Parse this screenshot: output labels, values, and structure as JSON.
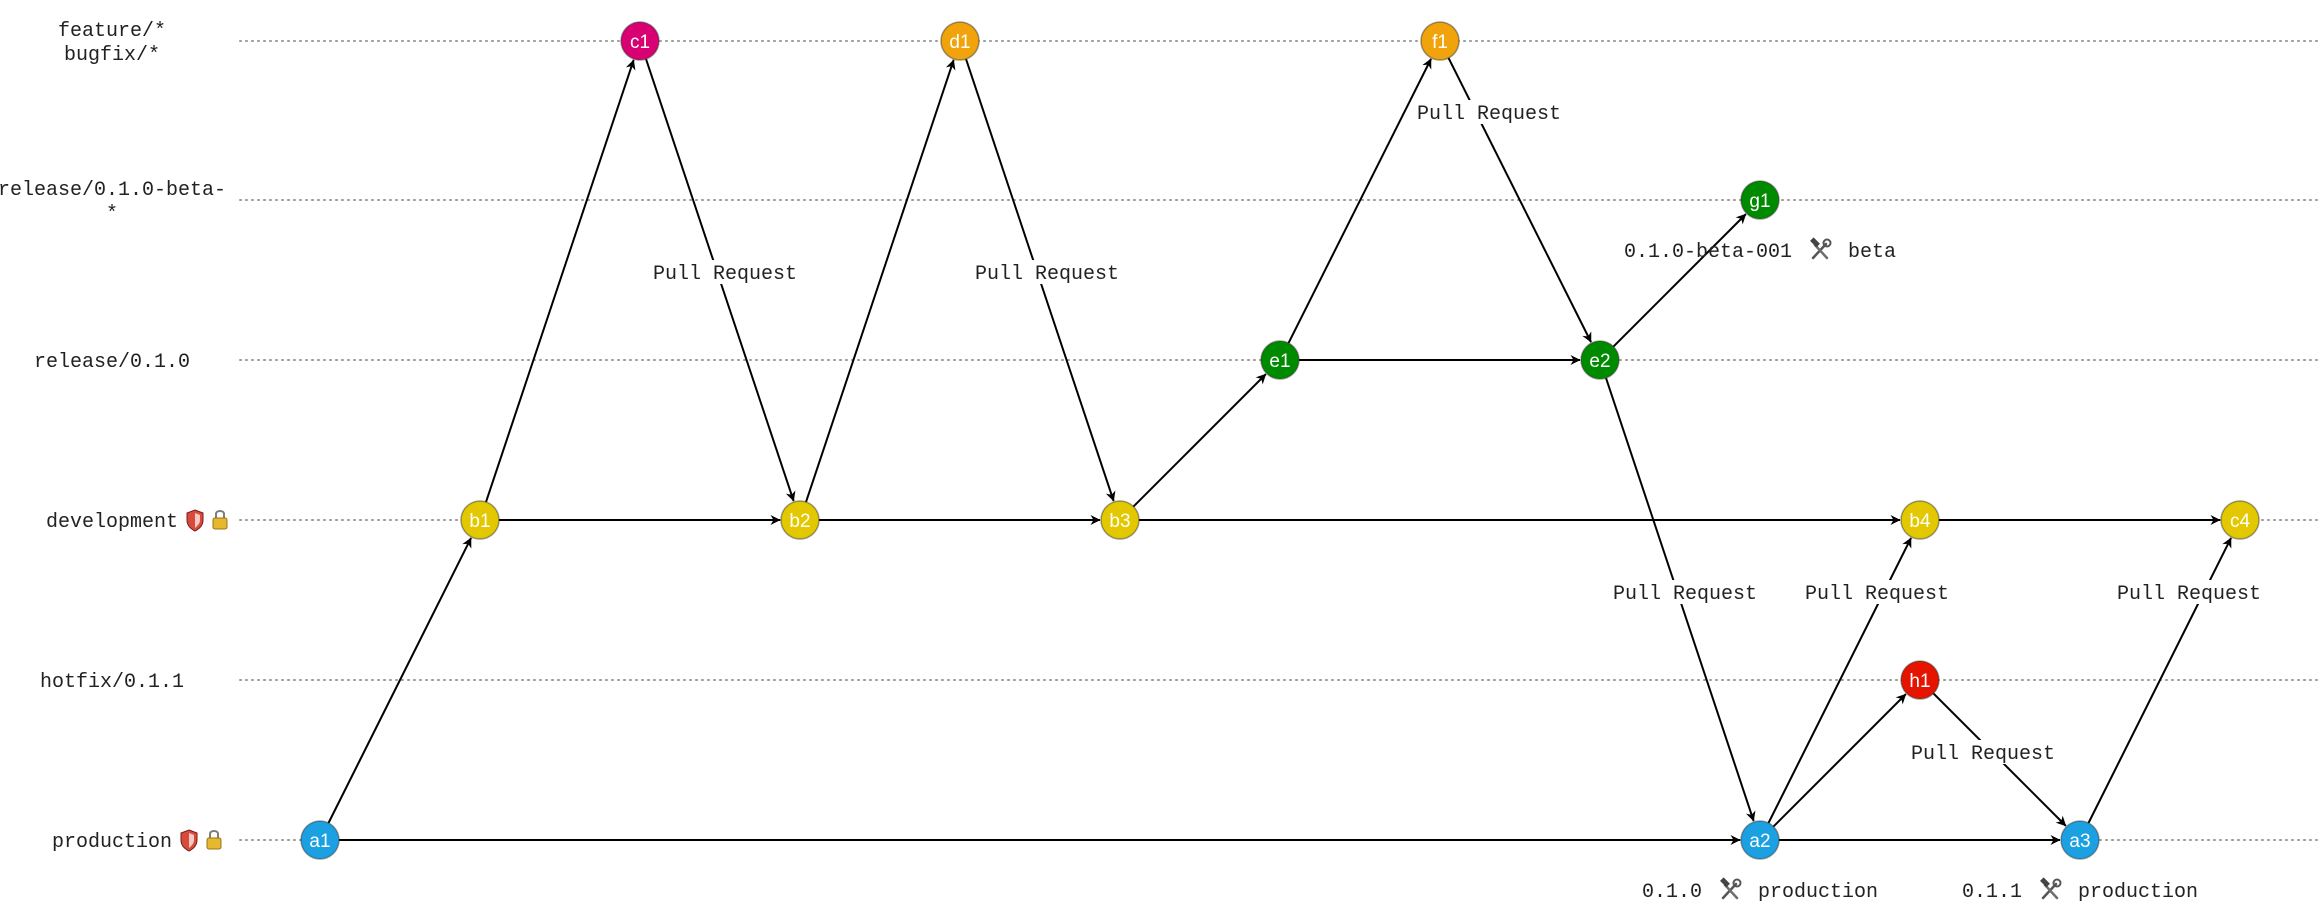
{
  "lanes": [
    {
      "id": "feature",
      "label_lines": [
        "feature/*",
        "bugfix/*"
      ],
      "icons": []
    },
    {
      "id": "release_beta",
      "label_lines": [
        "release/0.1.0-beta-",
        "*"
      ],
      "icons": []
    },
    {
      "id": "release",
      "label_lines": [
        "release/0.1.0"
      ],
      "icons": []
    },
    {
      "id": "development",
      "label_lines": [
        "development"
      ],
      "icons": [
        "shield-icon",
        "lock-icon"
      ]
    },
    {
      "id": "hotfix",
      "label_lines": [
        "hotfix/0.1.1"
      ],
      "icons": []
    },
    {
      "id": "production",
      "label_lines": [
        "production"
      ],
      "icons": [
        "shield-icon",
        "lock-icon"
      ]
    }
  ],
  "colors": {
    "production": "#1ba1e2",
    "development": "#e3c800",
    "feature_pink": "#d80073",
    "feature_orange": "#f0a30a",
    "release": "#008a00",
    "hotfix": "#e51400"
  },
  "nodes": [
    {
      "id": "a1",
      "label": "a1",
      "lane": "production",
      "color": "#1ba1e2"
    },
    {
      "id": "b1",
      "label": "b1",
      "lane": "development",
      "color": "#e3c800"
    },
    {
      "id": "c1",
      "label": "c1",
      "lane": "feature",
      "color": "#d80073"
    },
    {
      "id": "b2",
      "label": "b2",
      "lane": "development",
      "color": "#e3c800"
    },
    {
      "id": "d1",
      "label": "d1",
      "lane": "feature",
      "color": "#f0a30a"
    },
    {
      "id": "b3",
      "label": "b3",
      "lane": "development",
      "color": "#e3c800"
    },
    {
      "id": "e1",
      "label": "e1",
      "lane": "release",
      "color": "#008a00"
    },
    {
      "id": "f1",
      "label": "f1",
      "lane": "feature",
      "color": "#f0a30a"
    },
    {
      "id": "e2",
      "label": "e2",
      "lane": "release",
      "color": "#008a00"
    },
    {
      "id": "g1",
      "label": "g1",
      "lane": "release_beta",
      "color": "#008a00"
    },
    {
      "id": "a2",
      "label": "a2",
      "lane": "production",
      "color": "#1ba1e2"
    },
    {
      "id": "h1",
      "label": "h1",
      "lane": "hotfix",
      "color": "#e51400"
    },
    {
      "id": "b4",
      "label": "b4",
      "lane": "development",
      "color": "#e3c800"
    },
    {
      "id": "a3",
      "label": "a3",
      "lane": "production",
      "color": "#1ba1e2"
    },
    {
      "id": "c4",
      "label": "c4",
      "lane": "development",
      "color": "#e3c800"
    }
  ],
  "edges": [
    {
      "from": "a1",
      "to": "b1",
      "label": ""
    },
    {
      "from": "b1",
      "to": "c1",
      "label": ""
    },
    {
      "from": "c1",
      "to": "b2",
      "label": "Pull Request"
    },
    {
      "from": "b1",
      "to": "b2",
      "label": ""
    },
    {
      "from": "b2",
      "to": "d1",
      "label": ""
    },
    {
      "from": "d1",
      "to": "b3",
      "label": "Pull Request"
    },
    {
      "from": "b2",
      "to": "b3",
      "label": ""
    },
    {
      "from": "b3",
      "to": "e1",
      "label": ""
    },
    {
      "from": "e1",
      "to": "f1",
      "label": ""
    },
    {
      "from": "f1",
      "to": "e2",
      "label": "Pull Request"
    },
    {
      "from": "e1",
      "to": "e2",
      "label": ""
    },
    {
      "from": "e2",
      "to": "g1",
      "label": ""
    },
    {
      "from": "e2",
      "to": "a2",
      "label": "Pull Request"
    },
    {
      "from": "a1",
      "to": "a2",
      "label": ""
    },
    {
      "from": "b3",
      "to": "b4",
      "label": ""
    },
    {
      "from": "a2",
      "to": "b4",
      "label": "Pull Request"
    },
    {
      "from": "a2",
      "to": "h1",
      "label": ""
    },
    {
      "from": "h1",
      "to": "a3",
      "label": "Pull Request"
    },
    {
      "from": "a2",
      "to": "a3",
      "label": ""
    },
    {
      "from": "b4",
      "to": "c4",
      "label": ""
    },
    {
      "from": "a3",
      "to": "c4",
      "label": "Pull Request"
    }
  ],
  "tags": [
    {
      "node": "g1",
      "version": "0.1.0-beta-001",
      "icon": "hammer-wrench-icon",
      "env": "beta"
    },
    {
      "node": "a2",
      "version": "0.1.0",
      "icon": "hammer-wrench-icon",
      "env": "production"
    },
    {
      "node": "a3",
      "version": "0.1.1",
      "icon": "hammer-wrench-icon",
      "env": "production"
    }
  ]
}
